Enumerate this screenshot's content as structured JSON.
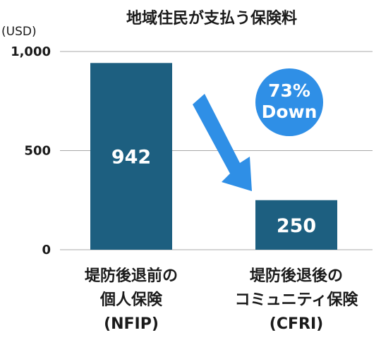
{
  "chart_data": {
    "type": "bar",
    "title": "地域住民が支払う保険料",
    "ylabel": "(USD)",
    "ylim": [
      0,
      1000
    ],
    "yticks": [
      {
        "value": 0,
        "label": "0"
      },
      {
        "value": 500,
        "label": "500"
      },
      {
        "value": 1000,
        "label": "1,000"
      }
    ],
    "grid": true,
    "categories": [
      {
        "lines": [
          "堤防後退前の",
          "個人保険",
          "(NFIP)"
        ]
      },
      {
        "lines": [
          "堤防後退後の",
          "コミュニティ保険",
          "(CFRI)"
        ]
      }
    ],
    "values": [
      942,
      250
    ],
    "value_labels": [
      "942",
      "250"
    ],
    "bar_color": "#1d5f80",
    "annotation": {
      "lines": [
        "73%",
        "Down"
      ],
      "badge_color": "#2f8fe6",
      "arrow_color": "#2f8fe6"
    }
  }
}
